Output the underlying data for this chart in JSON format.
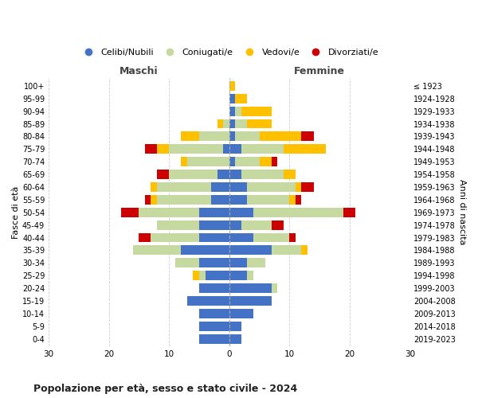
{
  "age_groups": [
    "0-4",
    "5-9",
    "10-14",
    "15-19",
    "20-24",
    "25-29",
    "30-34",
    "35-39",
    "40-44",
    "45-49",
    "50-54",
    "55-59",
    "60-64",
    "65-69",
    "70-74",
    "75-79",
    "80-84",
    "85-89",
    "90-94",
    "95-99",
    "100+"
  ],
  "birth_years": [
    "2019-2023",
    "2014-2018",
    "2009-2013",
    "2004-2008",
    "1999-2003",
    "1994-1998",
    "1989-1993",
    "1984-1988",
    "1979-1983",
    "1974-1978",
    "1969-1973",
    "1964-1968",
    "1959-1963",
    "1954-1958",
    "1949-1953",
    "1944-1948",
    "1939-1943",
    "1934-1938",
    "1929-1933",
    "1924-1928",
    "≤ 1923"
  ],
  "male": {
    "celibe": [
      5,
      5,
      5,
      7,
      5,
      4,
      5,
      8,
      5,
      5,
      5,
      3,
      3,
      2,
      0,
      1,
      0,
      0,
      0,
      0,
      0
    ],
    "coniugato": [
      0,
      0,
      0,
      0,
      0,
      1,
      4,
      8,
      8,
      7,
      10,
      9,
      9,
      8,
      7,
      9,
      5,
      1,
      0,
      0,
      0
    ],
    "vedovo": [
      0,
      0,
      0,
      0,
      0,
      1,
      0,
      0,
      0,
      0,
      0,
      1,
      1,
      0,
      1,
      2,
      3,
      1,
      0,
      0,
      0
    ],
    "divorziato": [
      0,
      0,
      0,
      0,
      0,
      0,
      0,
      0,
      2,
      0,
      3,
      1,
      0,
      2,
      0,
      2,
      0,
      0,
      0,
      0,
      0
    ]
  },
  "female": {
    "nubile": [
      2,
      2,
      4,
      7,
      7,
      3,
      3,
      7,
      4,
      2,
      4,
      3,
      3,
      2,
      1,
      2,
      1,
      1,
      1,
      1,
      0
    ],
    "coniugata": [
      0,
      0,
      0,
      0,
      1,
      1,
      3,
      5,
      6,
      5,
      15,
      7,
      8,
      7,
      4,
      7,
      4,
      2,
      1,
      0,
      0
    ],
    "vedova": [
      0,
      0,
      0,
      0,
      0,
      0,
      0,
      1,
      0,
      0,
      0,
      1,
      1,
      2,
      2,
      7,
      7,
      4,
      5,
      2,
      1
    ],
    "divorziata": [
      0,
      0,
      0,
      0,
      0,
      0,
      0,
      0,
      1,
      2,
      2,
      1,
      2,
      0,
      1,
      0,
      2,
      0,
      0,
      0,
      0
    ]
  },
  "colors": {
    "celibe": "#4472c4",
    "coniugato": "#c5d9a0",
    "vedovo": "#ffc000",
    "divorziato": "#cc0000"
  },
  "xlim": 30,
  "title": "Popolazione per età, sesso e stato civile - 2024",
  "ylabel_left": "Fasce di età",
  "ylabel_right": "Anni di nascita",
  "xlabel_male": "Maschi",
  "xlabel_female": "Femmine",
  "legend_labels": [
    "Celibi/Nubili",
    "Coniugati/e",
    "Vedovi/e",
    "Divorziati/e"
  ],
  "background_color": "#ffffff",
  "grid_color": "#cccccc"
}
